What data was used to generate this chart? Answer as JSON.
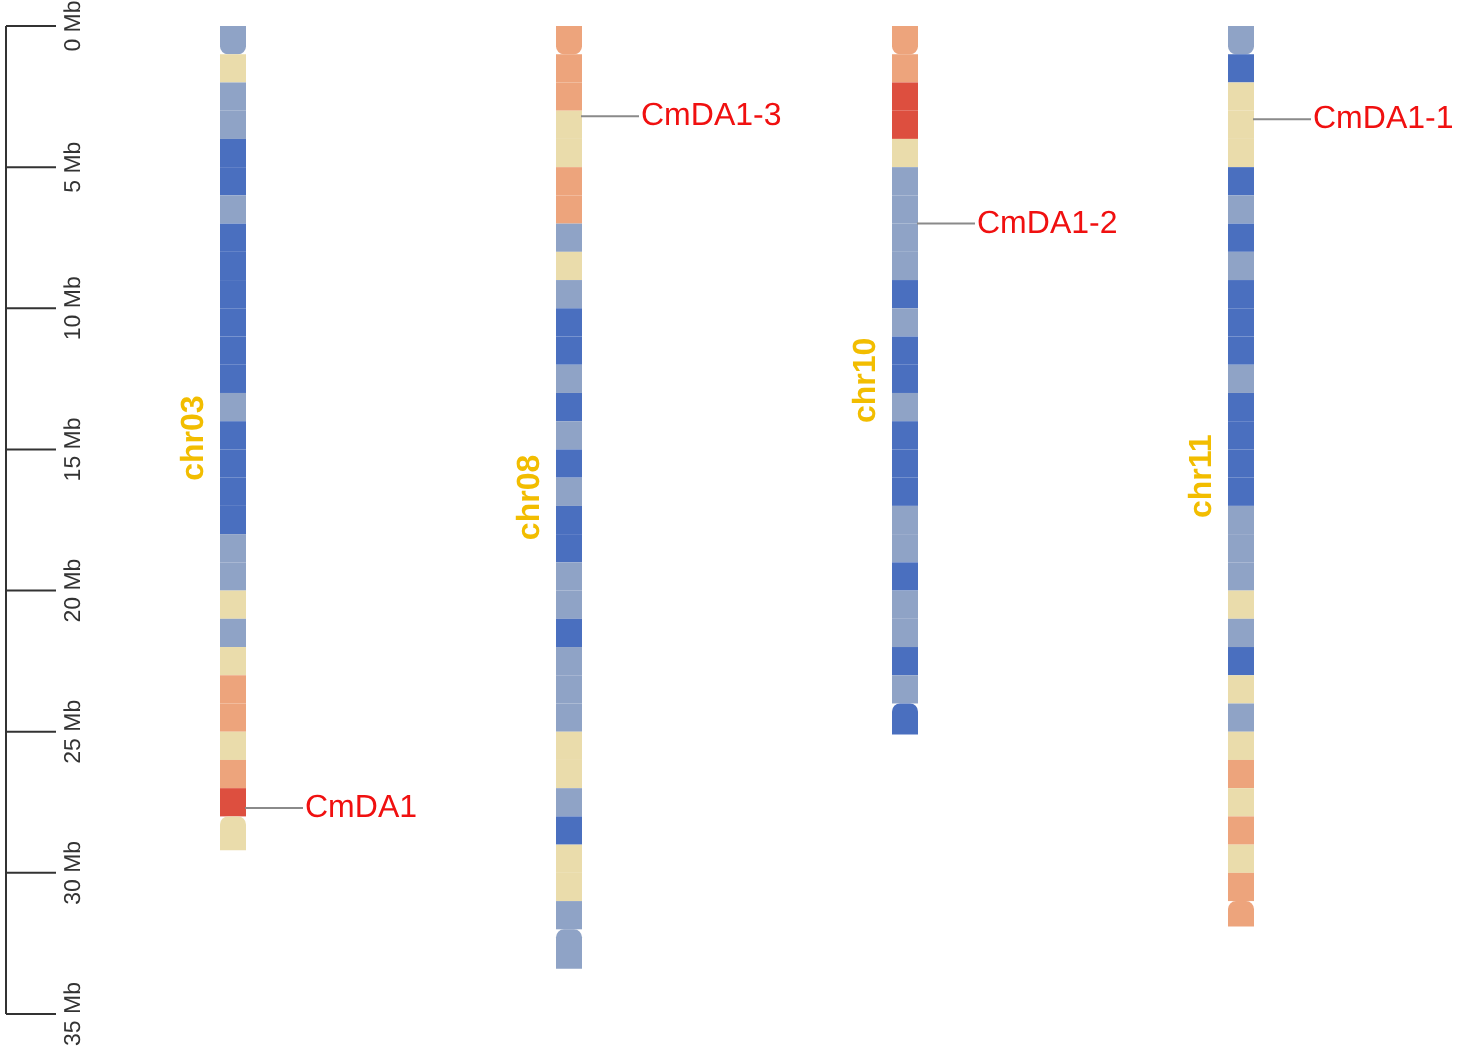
{
  "chart_data": {
    "type": "bar",
    "stacked": true,
    "categories": [
      "chr03",
      "chr08",
      "chr10",
      "chr11"
    ],
    "ylim": [
      35,
      0
    ],
    "yticks": [
      {
        "value": 0,
        "label": "0 Mb"
      },
      {
        "value": 5,
        "label": "5 Mb"
      },
      {
        "value": 10,
        "label": "10 Mb"
      },
      {
        "value": 15,
        "label": "15 Mb"
      },
      {
        "value": 20,
        "label": "20 Mb"
      },
      {
        "value": 25,
        "label": "25 Mb"
      },
      {
        "value": 30,
        "label": "30 Mb"
      },
      {
        "value": 35,
        "label": "35 Mb"
      }
    ],
    "series": [
      {
        "values": [
          1,
          1,
          1,
          1
        ],
        "colors": [
          "#8fa3c6",
          "#eda47c",
          "#eda47c",
          "#8fa3c6"
        ]
      },
      {
        "values": [
          1,
          1,
          1,
          1
        ],
        "colors": [
          "#eadcab",
          "#eda47c",
          "#eda47c",
          "#4a6fbf"
        ]
      },
      {
        "values": [
          1,
          1,
          1,
          1
        ],
        "colors": [
          "#8fa3c6",
          "#eda47c",
          "#dd4f3f",
          "#eadcab"
        ]
      },
      {
        "values": [
          1,
          1,
          1,
          1
        ],
        "colors": [
          "#8fa3c6",
          "#eadcab",
          "#dd4f3f",
          "#eadcab"
        ]
      },
      {
        "values": [
          1,
          1,
          1,
          1
        ],
        "colors": [
          "#4a6fbf",
          "#eadcab",
          "#eadcab",
          "#eadcab"
        ]
      },
      {
        "values": [
          1,
          1,
          1,
          1
        ],
        "colors": [
          "#4a6fbf",
          "#eda47c",
          "#8fa3c6",
          "#4a6fbf"
        ]
      },
      {
        "values": [
          1,
          1,
          1,
          1
        ],
        "colors": [
          "#8fa3c6",
          "#eda47c",
          "#8fa3c6",
          "#8fa3c6"
        ]
      },
      {
        "values": [
          1,
          1,
          1,
          1
        ],
        "colors": [
          "#4a6fbf",
          "#8fa3c6",
          "#8fa3c6",
          "#4a6fbf"
        ]
      },
      {
        "values": [
          1,
          1,
          1,
          1
        ],
        "colors": [
          "#4a6fbf",
          "#eadcab",
          "#8fa3c6",
          "#8fa3c6"
        ]
      },
      {
        "values": [
          1,
          1,
          1,
          1
        ],
        "colors": [
          "#4a6fbf",
          "#8fa3c6",
          "#4a6fbf",
          "#4a6fbf"
        ]
      },
      {
        "values": [
          1,
          1,
          1,
          1
        ],
        "colors": [
          "#4a6fbf",
          "#4a6fbf",
          "#8fa3c6",
          "#4a6fbf"
        ]
      },
      {
        "values": [
          1,
          1,
          1,
          1
        ],
        "colors": [
          "#4a6fbf",
          "#4a6fbf",
          "#4a6fbf",
          "#4a6fbf"
        ]
      },
      {
        "values": [
          1,
          1,
          1,
          1
        ],
        "colors": [
          "#4a6fbf",
          "#8fa3c6",
          "#4a6fbf",
          "#8fa3c6"
        ]
      },
      {
        "values": [
          1,
          1,
          1,
          1
        ],
        "colors": [
          "#8fa3c6",
          "#4a6fbf",
          "#8fa3c6",
          "#4a6fbf"
        ]
      },
      {
        "values": [
          1,
          1,
          1,
          1
        ],
        "colors": [
          "#4a6fbf",
          "#8fa3c6",
          "#4a6fbf",
          "#4a6fbf"
        ]
      },
      {
        "values": [
          1,
          1,
          1,
          1
        ],
        "colors": [
          "#4a6fbf",
          "#4a6fbf",
          "#4a6fbf",
          "#4a6fbf"
        ]
      },
      {
        "values": [
          1,
          1,
          1,
          1
        ],
        "colors": [
          "#4a6fbf",
          "#8fa3c6",
          "#4a6fbf",
          "#4a6fbf"
        ]
      },
      {
        "values": [
          1,
          1,
          1,
          1
        ],
        "colors": [
          "#4a6fbf",
          "#4a6fbf",
          "#8fa3c6",
          "#8fa3c6"
        ]
      },
      {
        "values": [
          1,
          1,
          1,
          1
        ],
        "colors": [
          "#8fa3c6",
          "#4a6fbf",
          "#8fa3c6",
          "#8fa3c6"
        ]
      },
      {
        "values": [
          1,
          1,
          1,
          1
        ],
        "colors": [
          "#8fa3c6",
          "#8fa3c6",
          "#4a6fbf",
          "#8fa3c6"
        ]
      },
      {
        "values": [
          1,
          1,
          1,
          1
        ],
        "colors": [
          "#eadcab",
          "#8fa3c6",
          "#8fa3c6",
          "#eadcab"
        ]
      },
      {
        "values": [
          1,
          1,
          1,
          1
        ],
        "colors": [
          "#8fa3c6",
          "#4a6fbf",
          "#8fa3c6",
          "#8fa3c6"
        ]
      },
      {
        "values": [
          1,
          1,
          1,
          1
        ],
        "colors": [
          "#eadcab",
          "#8fa3c6",
          "#4a6fbf",
          "#4a6fbf"
        ]
      },
      {
        "values": [
          1,
          1,
          1,
          1
        ],
        "colors": [
          "#eda47c",
          "#8fa3c6",
          "#8fa3c6",
          "#eadcab"
        ]
      },
      {
        "values": [
          1,
          1,
          1.1,
          1
        ],
        "colors": [
          "#eda47c",
          "#8fa3c6",
          "#4a6fbf",
          "#8fa3c6"
        ]
      },
      {
        "values": [
          1,
          1,
          null,
          1
        ],
        "colors": [
          "#eadcab",
          "#eadcab",
          null,
          "#eadcab"
        ]
      },
      {
        "values": [
          1,
          1,
          null,
          1
        ],
        "colors": [
          "#eda47c",
          "#eadcab",
          null,
          "#eda47c"
        ]
      },
      {
        "values": [
          1,
          1,
          null,
          1
        ],
        "colors": [
          "#dd4f3f",
          "#8fa3c6",
          null,
          "#eadcab"
        ]
      },
      {
        "values": [
          1.2,
          1,
          null,
          1
        ],
        "colors": [
          "#eadcab",
          "#4a6fbf",
          null,
          "#eda47c"
        ]
      },
      {
        "values": [
          null,
          1,
          null,
          1
        ],
        "colors": [
          null,
          "#eadcab",
          null,
          "#eadcab"
        ]
      },
      {
        "values": [
          null,
          1,
          null,
          1
        ],
        "colors": [
          null,
          "#eadcab",
          null,
          "#eda47c"
        ]
      },
      {
        "values": [
          null,
          1,
          null,
          0.9
        ],
        "colors": [
          null,
          "#8fa3c6",
          null,
          "#eda47c"
        ]
      },
      {
        "values": [
          null,
          1.4,
          null,
          null
        ],
        "colors": [
          null,
          "#8fa3c6",
          null,
          null
        ]
      }
    ],
    "annotations": [
      {
        "text": "CmDA1",
        "x": "chr03",
        "y": 27.7
      },
      {
        "text": "CmDA1-3",
        "x": "chr08",
        "y": 3.2
      },
      {
        "text": "CmDA1-2",
        "x": "chr10",
        "y": 7.0
      },
      {
        "text": "CmDA1-1",
        "x": "chr11",
        "y": 3.3
      }
    ]
  }
}
